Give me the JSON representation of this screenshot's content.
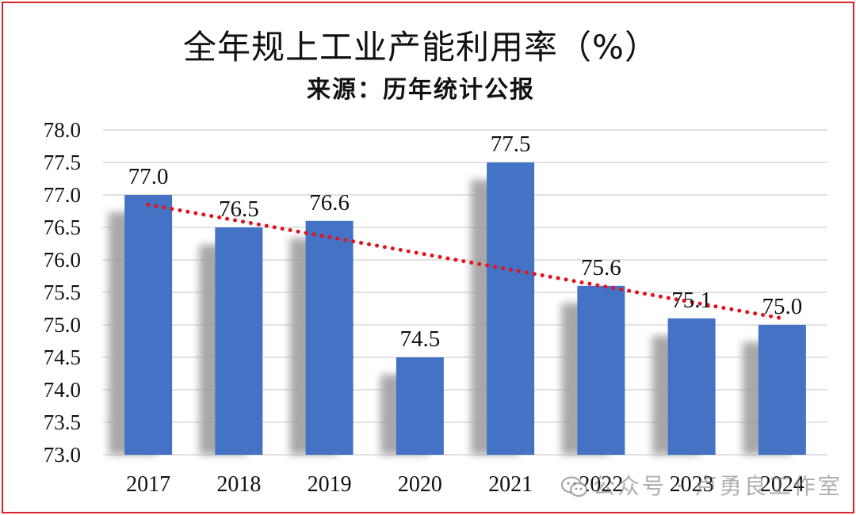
{
  "chart_data": {
    "type": "bar",
    "title": "全年规上工业产能利用率（%）",
    "subtitle": "来源：历年统计公报",
    "categories": [
      "2017",
      "2018",
      "2019",
      "2020",
      "2021",
      "2022",
      "2023",
      "2024"
    ],
    "values": [
      77.0,
      76.5,
      76.6,
      74.5,
      77.5,
      75.6,
      75.1,
      75.0
    ],
    "data_labels": [
      "77.0",
      "76.5",
      "76.6",
      "74.5",
      "77.5",
      "75.6",
      "75.1",
      "75.0"
    ],
    "ylim": [
      73.0,
      78.0
    ],
    "yticks": [
      "73.0",
      "73.5",
      "74.0",
      "74.5",
      "75.0",
      "75.5",
      "76.0",
      "76.5",
      "77.0",
      "77.5",
      "78.0"
    ],
    "xlabel": "",
    "ylabel": "",
    "grid": true,
    "legend": "none",
    "trendline": {
      "type": "linear",
      "style": "dotted",
      "color": "#e0141e"
    },
    "colors": {
      "bar": "#4472c4",
      "shadow": "#9a9a9a",
      "grid": "#d9d9d9",
      "frame": "#d8232a"
    }
  },
  "watermark": {
    "text": "公众号 · 卢勇良工作室",
    "icon": "wechat-icon"
  }
}
